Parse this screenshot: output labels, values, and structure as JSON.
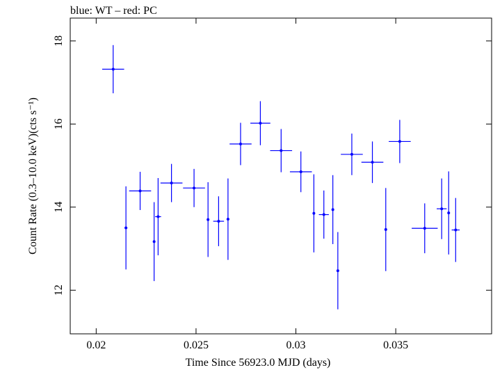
{
  "chart_data": {
    "type": "scatter",
    "title": "blue: WT – red: PC",
    "xlabel": "Time Since 56923.0 MJD (days)",
    "ylabel": "Count Rate (0.3–10.0 keV)(cts s⁻¹)",
    "xlim": [
      0.0187,
      0.0398
    ],
    "ylim": [
      10.95,
      18.55
    ],
    "x_ticks": [
      0.02,
      0.025,
      0.03,
      0.035
    ],
    "x_tick_labels": [
      "0.02",
      "0.025",
      "0.03",
      "0.035"
    ],
    "y_ticks": [
      12,
      14,
      16,
      18
    ],
    "y_tick_labels": [
      "12",
      "14",
      "16",
      "18"
    ],
    "grid": false,
    "colors": {
      "wt": "#0000ff",
      "frame": "#000000"
    },
    "series": [
      {
        "name": "WT",
        "color": "#0000ff",
        "points": [
          {
            "x": 0.02085,
            "y": 17.32,
            "xerr": 0.00055,
            "yerr": 0.58
          },
          {
            "x": 0.02149,
            "y": 13.5,
            "xerr": 7e-05,
            "yerr": 1.0
          },
          {
            "x": 0.0222,
            "y": 14.39,
            "xerr": 0.00055,
            "yerr": 0.46
          },
          {
            "x": 0.0229,
            "y": 13.17,
            "xerr": 3e-05,
            "yerr": 0.95
          },
          {
            "x": 0.0231,
            "y": 13.77,
            "xerr": 0.00015,
            "yerr": 0.93
          },
          {
            "x": 0.02377,
            "y": 14.58,
            "xerr": 0.00055,
            "yerr": 0.46
          },
          {
            "x": 0.0249,
            "y": 14.46,
            "xerr": 0.00055,
            "yerr": 0.46
          },
          {
            "x": 0.0256,
            "y": 13.7,
            "xerr": 4e-05,
            "yerr": 0.9
          },
          {
            "x": 0.02613,
            "y": 13.66,
            "xerr": 0.00027,
            "yerr": 0.6
          },
          {
            "x": 0.0266,
            "y": 13.71,
            "xerr": 7e-05,
            "yerr": 0.98
          },
          {
            "x": 0.02723,
            "y": 15.52,
            "xerr": 0.00055,
            "yerr": 0.51
          },
          {
            "x": 0.02822,
            "y": 16.02,
            "xerr": 0.0005,
            "yerr": 0.53
          },
          {
            "x": 0.02926,
            "y": 15.36,
            "xerr": 0.00055,
            "yerr": 0.52
          },
          {
            "x": 0.03025,
            "y": 14.85,
            "xerr": 0.00055,
            "yerr": 0.49
          },
          {
            "x": 0.0309,
            "y": 13.85,
            "xerr": 5e-05,
            "yerr": 0.94
          },
          {
            "x": 0.0314,
            "y": 13.82,
            "xerr": 0.00025,
            "yerr": 0.58
          },
          {
            "x": 0.03185,
            "y": 13.94,
            "xerr": 5e-05,
            "yerr": 0.83
          },
          {
            "x": 0.0321,
            "y": 12.47,
            "xerr": 5e-05,
            "yerr": 0.93
          },
          {
            "x": 0.0328,
            "y": 15.27,
            "xerr": 0.00055,
            "yerr": 0.5
          },
          {
            "x": 0.03383,
            "y": 15.08,
            "xerr": 0.00055,
            "yerr": 0.5
          },
          {
            "x": 0.0345,
            "y": 13.46,
            "xerr": 4e-05,
            "yerr": 1.0
          },
          {
            "x": 0.0352,
            "y": 15.58,
            "xerr": 0.00055,
            "yerr": 0.52
          },
          {
            "x": 0.03645,
            "y": 13.49,
            "xerr": 0.00065,
            "yerr": 0.6
          },
          {
            "x": 0.0373,
            "y": 13.96,
            "xerr": 0.00025,
            "yerr": 0.73
          },
          {
            "x": 0.03765,
            "y": 13.86,
            "xerr": 4e-05,
            "yerr": 1.0
          },
          {
            "x": 0.038,
            "y": 13.45,
            "xerr": 0.0002,
            "yerr": 0.77
          }
        ]
      }
    ]
  }
}
